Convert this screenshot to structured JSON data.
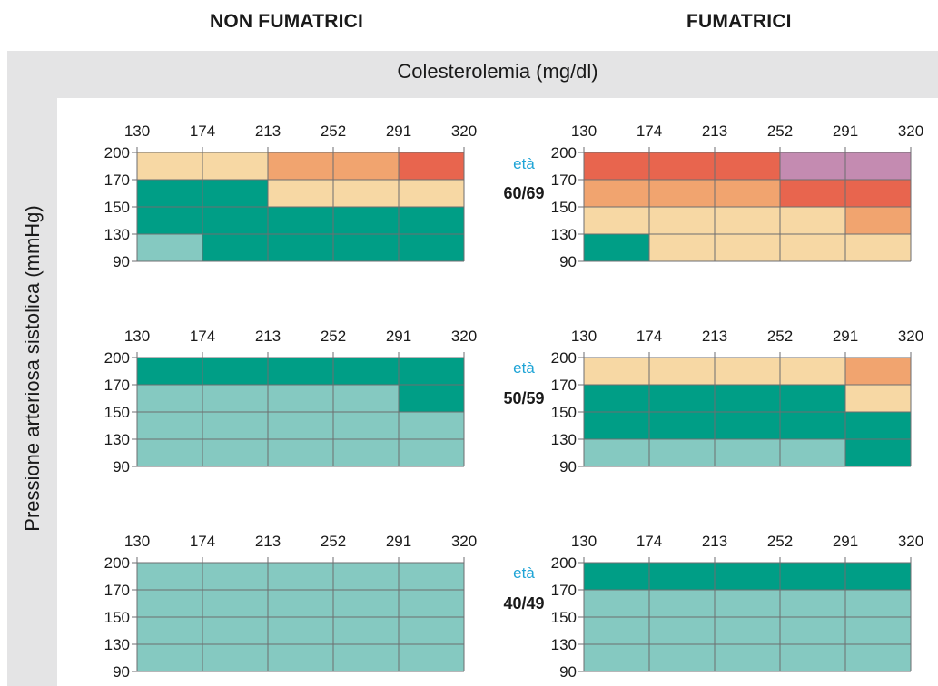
{
  "header": {
    "non_smokers": "NON FUMATRICI",
    "smokers": "FUMATRICI",
    "x_title": "Colesterolemia (mg/dl)",
    "y_title": "Pressione arteriosa sistolica (mmHg)",
    "age_label": "età"
  },
  "colors": {
    "L": "#85c9c1",
    "D": "#009e86",
    "Y": "#f7d8a4",
    "O": "#f1a46f",
    "R": "#e8654e",
    "P": "#c48bb1"
  },
  "chart_data": {
    "type": "heatmap",
    "xlabel": "Colesterolemia (mg/dl)",
    "ylabel": "Pressione arteriosa sistolica (mmHg)",
    "x_ticks": [
      "130",
      "174",
      "213",
      "252",
      "291",
      "320"
    ],
    "y_ticks": [
      "200",
      "170",
      "150",
      "130",
      "90"
    ],
    "panels": [
      {
        "group": "NON FUMATRICI",
        "age": "60/69",
        "rows": [
          [
            "Y",
            "Y",
            "O",
            "O",
            "R"
          ],
          [
            "D",
            "D",
            "Y",
            "Y",
            "Y"
          ],
          [
            "D",
            "D",
            "D",
            "D",
            "D"
          ],
          [
            "L",
            "D",
            "D",
            "D",
            "D"
          ]
        ]
      },
      {
        "group": "FUMATRICI",
        "age": "60/69",
        "rows": [
          [
            "R",
            "R",
            "R",
            "P",
            "P"
          ],
          [
            "O",
            "O",
            "O",
            "R",
            "R"
          ],
          [
            "Y",
            "Y",
            "Y",
            "Y",
            "O"
          ],
          [
            "D",
            "Y",
            "Y",
            "Y",
            "Y"
          ]
        ]
      },
      {
        "group": "NON FUMATRICI",
        "age": "50/59",
        "rows": [
          [
            "D",
            "D",
            "D",
            "D",
            "D"
          ],
          [
            "L",
            "L",
            "L",
            "L",
            "D"
          ],
          [
            "L",
            "L",
            "L",
            "L",
            "L"
          ],
          [
            "L",
            "L",
            "L",
            "L",
            "L"
          ]
        ]
      },
      {
        "group": "FUMATRICI",
        "age": "50/59",
        "rows": [
          [
            "Y",
            "Y",
            "Y",
            "Y",
            "O"
          ],
          [
            "D",
            "D",
            "D",
            "D",
            "Y"
          ],
          [
            "D",
            "D",
            "D",
            "D",
            "D"
          ],
          [
            "L",
            "L",
            "L",
            "L",
            "D"
          ]
        ]
      },
      {
        "group": "NON FUMATRICI",
        "age": "40/49",
        "rows": [
          [
            "L",
            "L",
            "L",
            "L",
            "L"
          ],
          [
            "L",
            "L",
            "L",
            "L",
            "L"
          ],
          [
            "L",
            "L",
            "L",
            "L",
            "L"
          ],
          [
            "L",
            "L",
            "L",
            "L",
            "L"
          ]
        ]
      },
      {
        "group": "FUMATRICI",
        "age": "40/49",
        "rows": [
          [
            "D",
            "D",
            "D",
            "D",
            "D"
          ],
          [
            "L",
            "L",
            "L",
            "L",
            "L"
          ],
          [
            "L",
            "L",
            "L",
            "L",
            "L"
          ],
          [
            "L",
            "L",
            "L",
            "L",
            "L"
          ]
        ]
      }
    ]
  }
}
